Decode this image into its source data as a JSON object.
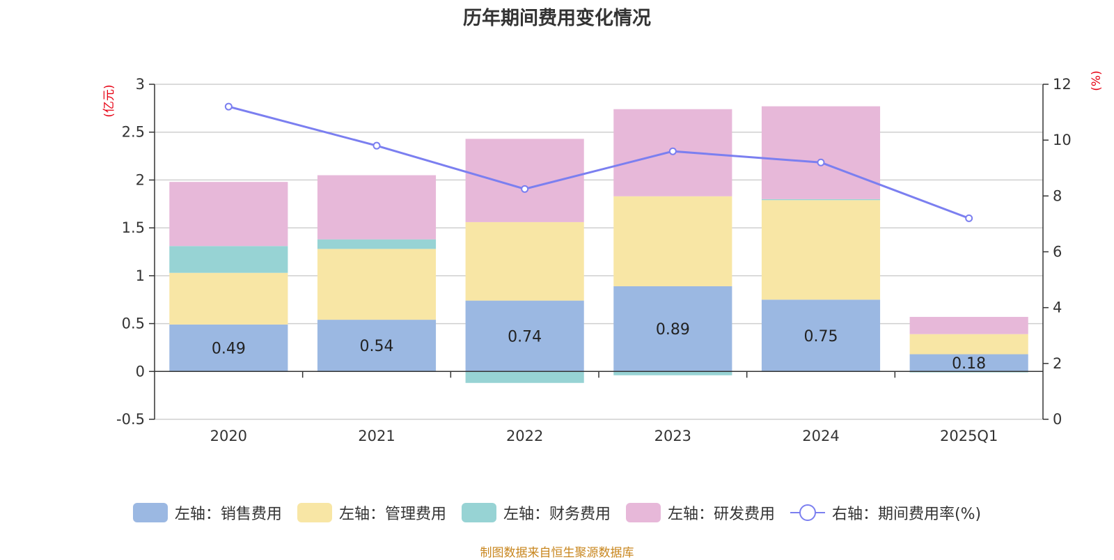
{
  "chart_data": {
    "type": "bar",
    "title": "历年期间费用变化情况",
    "categories": [
      "2020",
      "2021",
      "2022",
      "2023",
      "2024",
      "2025Q1"
    ],
    "left_axis": {
      "unit": "(亿元)",
      "ylim": [
        -0.5,
        3
      ],
      "ticks": [
        "-0.5",
        "0",
        "0.5",
        "1",
        "1.5",
        "2",
        "2.5",
        "3"
      ]
    },
    "right_axis": {
      "unit": "(%)",
      "ylim": [
        0,
        12
      ],
      "ticks": [
        "0",
        "2",
        "4",
        "6",
        "8",
        "10",
        "12"
      ]
    },
    "series": [
      {
        "name": "左轴：销售费用",
        "type": "bar",
        "axis": "left",
        "color": "#9bb8e2",
        "values": [
          0.49,
          0.54,
          0.74,
          0.89,
          0.75,
          0.18
        ],
        "data_labels": [
          "0.49",
          "0.54",
          "0.74",
          "0.89",
          "0.75",
          "0.18"
        ]
      },
      {
        "name": "左轴：管理费用",
        "type": "bar",
        "axis": "left",
        "color": "#f8e6a5",
        "values": [
          0.54,
          0.74,
          0.82,
          0.94,
          1.04,
          0.21
        ]
      },
      {
        "name": "左轴：财务费用",
        "type": "bar",
        "axis": "left",
        "color": "#97d3d4",
        "values": [
          0.28,
          0.1,
          -0.12,
          -0.04,
          0.01,
          -0.01
        ]
      },
      {
        "name": "左轴：研发费用",
        "type": "bar",
        "axis": "left",
        "color": "#e7b8d9",
        "values": [
          0.67,
          0.67,
          0.87,
          0.91,
          0.97,
          0.18
        ]
      },
      {
        "name": "右轴：期间费用率(%)",
        "type": "line",
        "axis": "right",
        "color": "#7b7ff0",
        "values": [
          11.2,
          9.8,
          8.25,
          9.6,
          9.2,
          7.2
        ]
      }
    ],
    "grid": true,
    "legend": "bottom"
  },
  "source_note": "制图数据来自恒生聚源数据库"
}
